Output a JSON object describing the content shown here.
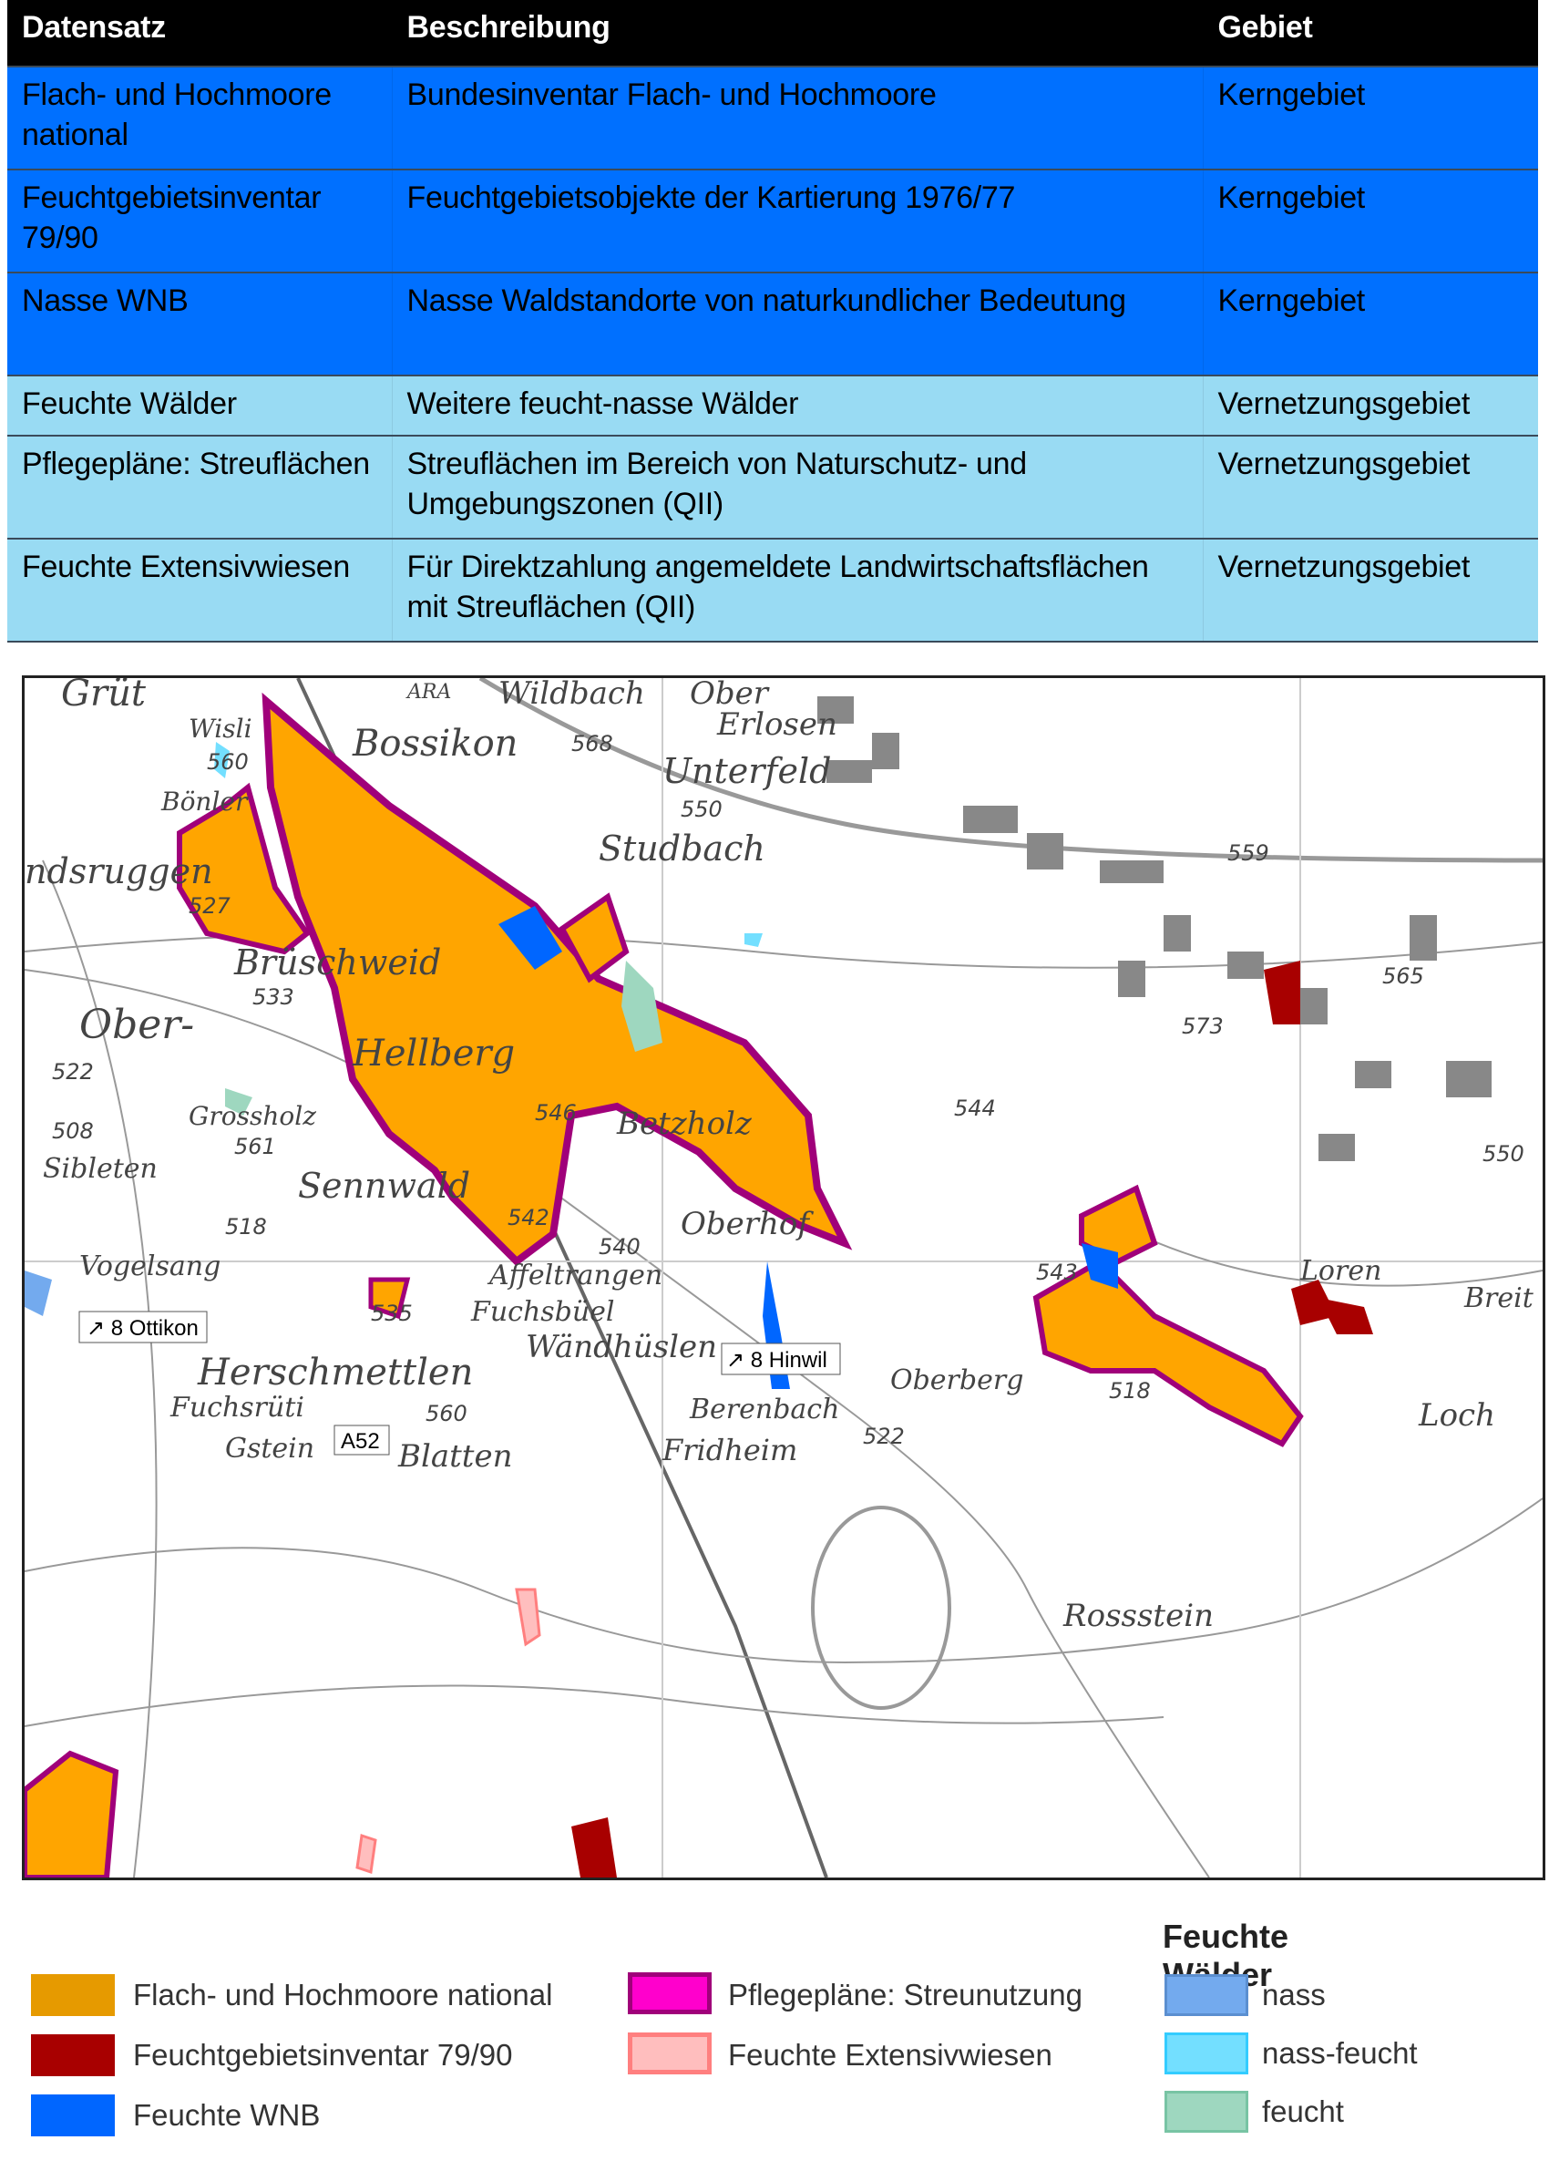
{
  "table": {
    "headers": [
      "Datensatz",
      "Beschreibung",
      "Gebiet"
    ],
    "rows": [
      {
        "datensatz": "Flach- und Hochmoore national",
        "beschreibung": "Bundesinventar Flach- und Hochmoore",
        "gebiet": "Kerngebiet"
      },
      {
        "datensatz": "Feuchtgebietsinventar 79/90",
        "beschreibung": "Feuchtgebietsobjekte der Kartierung 1976/77",
        "gebiet": "Kerngebiet"
      },
      {
        "datensatz": "Nasse WNB",
        "beschreibung": "Nasse Waldstandorte von naturkundlicher Bedeutung",
        "gebiet": "Kerngebiet"
      },
      {
        "datensatz": "Feuchte Wälder",
        "beschreibung": "Weitere feucht-nasse Wälder",
        "gebiet": "Vernetzungsgebiet"
      },
      {
        "datensatz": "Pflegepläne: Streuflächen",
        "beschreibung": "Streuflächen im Bereich von Naturschutz- und Umgebungszonen (QII)",
        "gebiet": "Vernetzungsgebiet"
      },
      {
        "datensatz": "Feuchte Extensivwiesen",
        "beschreibung": "Für Direktzahlung angemeldete Landwirtschaftsflächen mit Streuflächen (QII)",
        "gebiet": "Vernetzungsgebiet"
      }
    ],
    "colors": {
      "header": "#000000",
      "kerngebiet": "#0070ff",
      "vernetzungsgebiet": "#99dbf3"
    }
  },
  "map": {
    "places": [
      "Grüt",
      "Wisli",
      "Bossikon",
      "Wildbach",
      "Ober",
      "Erlosen",
      "Unterfeld",
      "Studbach",
      "Bönler",
      "ndsruggen",
      "Brüschweid",
      "Ober-",
      "Hellberg",
      "Grossholz",
      "Sibleten",
      "Sennwald",
      "Betzholz",
      "Oberhof",
      "Affeltrangen",
      "Fuchsbüel",
      "Wändhüslen",
      "Herschmettlen",
      "Fuchsrüti",
      "Gstein",
      "Blatten",
      "Vogelsang",
      "Berenbach",
      "Fridheim",
      "Oberberg",
      "Loren",
      "Loch",
      "Rossstein",
      "Breit",
      "ARA"
    ],
    "heights": [
      "568",
      "560",
      "550",
      "559",
      "527",
      "533",
      "522",
      "546",
      "561",
      "508",
      "518",
      "535",
      "542",
      "540",
      "543",
      "518",
      "522",
      "573",
      "565",
      "544",
      "550",
      "560"
    ],
    "signs": {
      "ottikon": "↗ 8 Ottikon",
      "hinwil": "↗ 8 Hinwil",
      "a52": "A52"
    }
  },
  "legend": {
    "title": "Feuchte Wälder",
    "items": [
      {
        "label": "Flach- und Hochmoore national",
        "color": "#e69a00"
      },
      {
        "label": "Feuchtgebietsinventar 79/90",
        "color": "#a80000"
      },
      {
        "label": "Feuchte WNB",
        "color": "#0066ff"
      },
      {
        "label": "Pflegepläne: Streunutzung",
        "color": "#ff00cc",
        "border": "#a0007a"
      },
      {
        "label": "Feuchte Extensivwiesen",
        "color": "#ffbebe",
        "border": "#ff7f7f"
      },
      {
        "label": "nass",
        "color": "#73aaee"
      },
      {
        "label": "nass-feucht",
        "color": "#73dfff"
      },
      {
        "label": "feucht",
        "color": "#9ed7bf"
      }
    ]
  }
}
